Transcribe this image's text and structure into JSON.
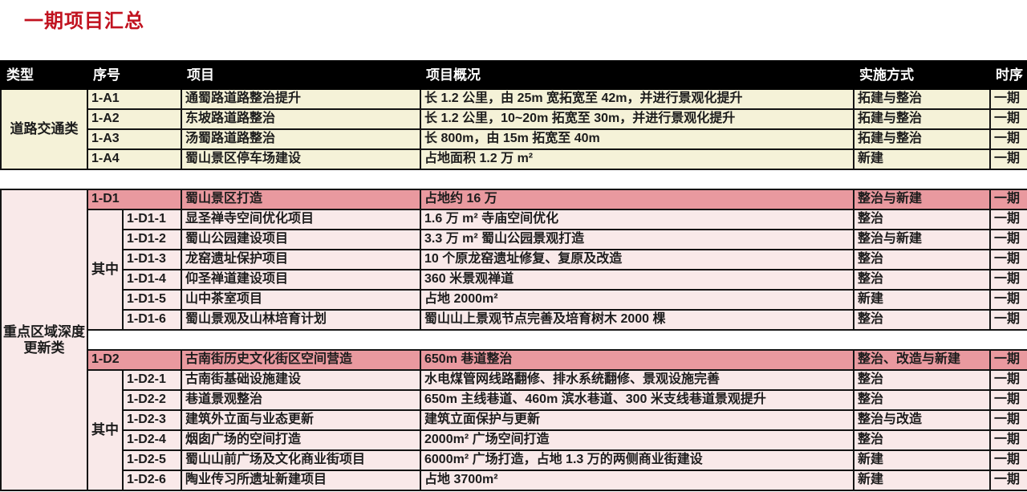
{
  "title": "一期项目汇总",
  "table": {
    "headers": [
      "类型",
      "序号",
      "项目",
      "项目概况",
      "实施方式",
      "时序"
    ],
    "colors": {
      "title_red": "#c1121f",
      "header_bg": "#000000",
      "road_group_bg": "#f5f2d8",
      "highlight_row_bg": "#e9999f",
      "sub_row_bg": "#f9e9e9"
    },
    "categories": [
      {
        "name": "道路交通类",
        "rows": [
          {
            "id": "1-A1",
            "project": "通蜀路道路整治提升",
            "overview": "长 1.2 公里，由 25m 宽拓宽至 42m，并进行景观化提升",
            "method": "拓建与整治",
            "phase": "一期"
          },
          {
            "id": "1-A2",
            "project": "东坡路道路整治",
            "overview": "长 1.2 公里，10~20m 拓宽至 30m，并进行景观化提升",
            "method": "拓建与整治",
            "phase": "一期"
          },
          {
            "id": "1-A3",
            "project": "汤蜀路道路整治",
            "overview": "长 800m，由 15m 拓宽至 40m",
            "method": "拓建与整治",
            "phase": "一期"
          },
          {
            "id": "1-A4",
            "project": "蜀山景区停车场建设",
            "overview": "占地面积 1.2 万 m²",
            "method": "新建",
            "phase": "一期"
          }
        ]
      },
      {
        "name": "重点区域深度更新类",
        "subgroups": [
          {
            "header": {
              "id": "1-D1",
              "project": "蜀山景区打造",
              "overview": "占地约 16 万",
              "method": "整治与新建",
              "phase": "一期"
            },
            "sub_label": "其中",
            "rows": [
              {
                "id": "1-D1-1",
                "project": "显圣禅寺空间优化项目",
                "overview": "1.6 万 m² 寺庙空间优化",
                "method": "整治",
                "phase": "一期"
              },
              {
                "id": "1-D1-2",
                "project": "蜀山公园建设项目",
                "overview": "3.3 万 m² 蜀山公园景观打造",
                "method": "整治与新建",
                "phase": "一期"
              },
              {
                "id": "1-D1-3",
                "project": "龙窑遗址保护项目",
                "overview": "10 个原龙窑遗址修复、复原及改造",
                "method": "整治",
                "phase": "一期"
              },
              {
                "id": "1-D1-4",
                "project": "仰圣禅道建设项目",
                "overview": "360 米景观禅道",
                "method": "整治",
                "phase": "一期"
              },
              {
                "id": "1-D1-5",
                "project": "山中茶室项目",
                "overview": "占地 2000m²",
                "method": "新建",
                "phase": "一期"
              },
              {
                "id": "1-D1-6",
                "project": "蜀山景观及山林培育计划",
                "overview": "蜀山山上景观节点完善及培育树木 2000 棵",
                "method": "整治",
                "phase": "一期"
              }
            ]
          },
          {
            "header": {
              "id": "1-D2",
              "project": "古南街历史文化街区空间营造",
              "overview": "650m 巷道整治",
              "method": "整治、改造与新建",
              "phase": "一期"
            },
            "sub_label": "其中",
            "rows": [
              {
                "id": "1-D2-1",
                "project": "古南街基础设施建设",
                "overview": "水电煤管网线路翻修、排水系统翻修、景观设施完善",
                "method": "整治",
                "phase": "一期"
              },
              {
                "id": "1-D2-2",
                "project": "巷道景观整治",
                "overview": "650m 主线巷道、460m 滨水巷道、300 米支线巷道景观提升",
                "method": "整治",
                "phase": "一期"
              },
              {
                "id": "1-D2-3",
                "project": "建筑外立面与业态更新",
                "overview": "建筑立面保护与更新",
                "method": "整治与改造",
                "phase": "一期"
              },
              {
                "id": "1-D2-4",
                "project": "烟囱广场的空间打造",
                "overview": "2000m² 广场空间打造",
                "method": "整治",
                "phase": "一期"
              },
              {
                "id": "1-D2-5",
                "project": "蜀山山前广场及文化商业街项目",
                "overview": "6000m² 广场打造，占地 1.3 万的两侧商业街建设",
                "method": "新建",
                "phase": "一期"
              },
              {
                "id": "1-D2-6",
                "project": "陶业传习所遗址新建项目",
                "overview": "占地 3700m²",
                "method": "新建",
                "phase": "一期"
              }
            ]
          }
        ]
      }
    ]
  }
}
